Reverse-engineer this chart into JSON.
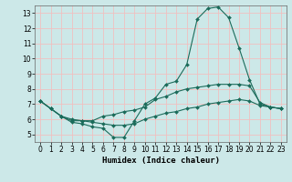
{
  "xlabel": "Humidex (Indice chaleur)",
  "background_color": "#cce8e8",
  "grid_color": "#f0c0c0",
  "line_color": "#1a6b5a",
  "xlim": [
    -0.5,
    23.5
  ],
  "ylim": [
    4.5,
    13.5
  ],
  "xticks": [
    0,
    1,
    2,
    3,
    4,
    5,
    6,
    7,
    8,
    9,
    10,
    11,
    12,
    13,
    14,
    15,
    16,
    17,
    18,
    19,
    20,
    21,
    22,
    23
  ],
  "yticks": [
    5,
    6,
    7,
    8,
    9,
    10,
    11,
    12,
    13
  ],
  "line1_x": [
    0,
    1,
    2,
    3,
    4,
    5,
    6,
    7,
    8,
    9,
    10,
    11,
    12,
    13,
    14,
    15,
    16,
    17,
    18,
    19,
    20,
    21,
    22,
    23
  ],
  "line1_y": [
    7.2,
    6.7,
    6.2,
    5.8,
    5.7,
    5.5,
    5.4,
    4.8,
    4.8,
    5.9,
    7.0,
    7.4,
    8.3,
    8.5,
    9.6,
    12.6,
    13.3,
    13.4,
    12.7,
    10.7,
    8.6,
    7.0,
    6.8,
    6.7
  ],
  "line2_x": [
    0,
    1,
    2,
    3,
    4,
    5,
    6,
    7,
    8,
    9,
    10,
    11,
    12,
    13,
    14,
    15,
    16,
    17,
    18,
    19,
    20,
    21,
    22,
    23
  ],
  "line2_y": [
    7.2,
    6.7,
    6.2,
    5.9,
    5.9,
    5.9,
    6.2,
    6.3,
    6.5,
    6.6,
    6.8,
    7.3,
    7.5,
    7.8,
    8.0,
    8.1,
    8.2,
    8.3,
    8.3,
    8.3,
    8.2,
    7.1,
    6.8,
    6.7
  ],
  "line3_x": [
    0,
    1,
    2,
    3,
    4,
    5,
    6,
    7,
    8,
    9,
    10,
    11,
    12,
    13,
    14,
    15,
    16,
    17,
    18,
    19,
    20,
    21,
    22,
    23
  ],
  "line3_y": [
    7.2,
    6.7,
    6.2,
    6.0,
    5.9,
    5.8,
    5.7,
    5.6,
    5.6,
    5.7,
    6.0,
    6.2,
    6.4,
    6.5,
    6.7,
    6.8,
    7.0,
    7.1,
    7.2,
    7.3,
    7.2,
    6.9,
    6.8,
    6.7
  ],
  "xlabel_fontsize": 6.5,
  "tick_fontsize": 5.5
}
